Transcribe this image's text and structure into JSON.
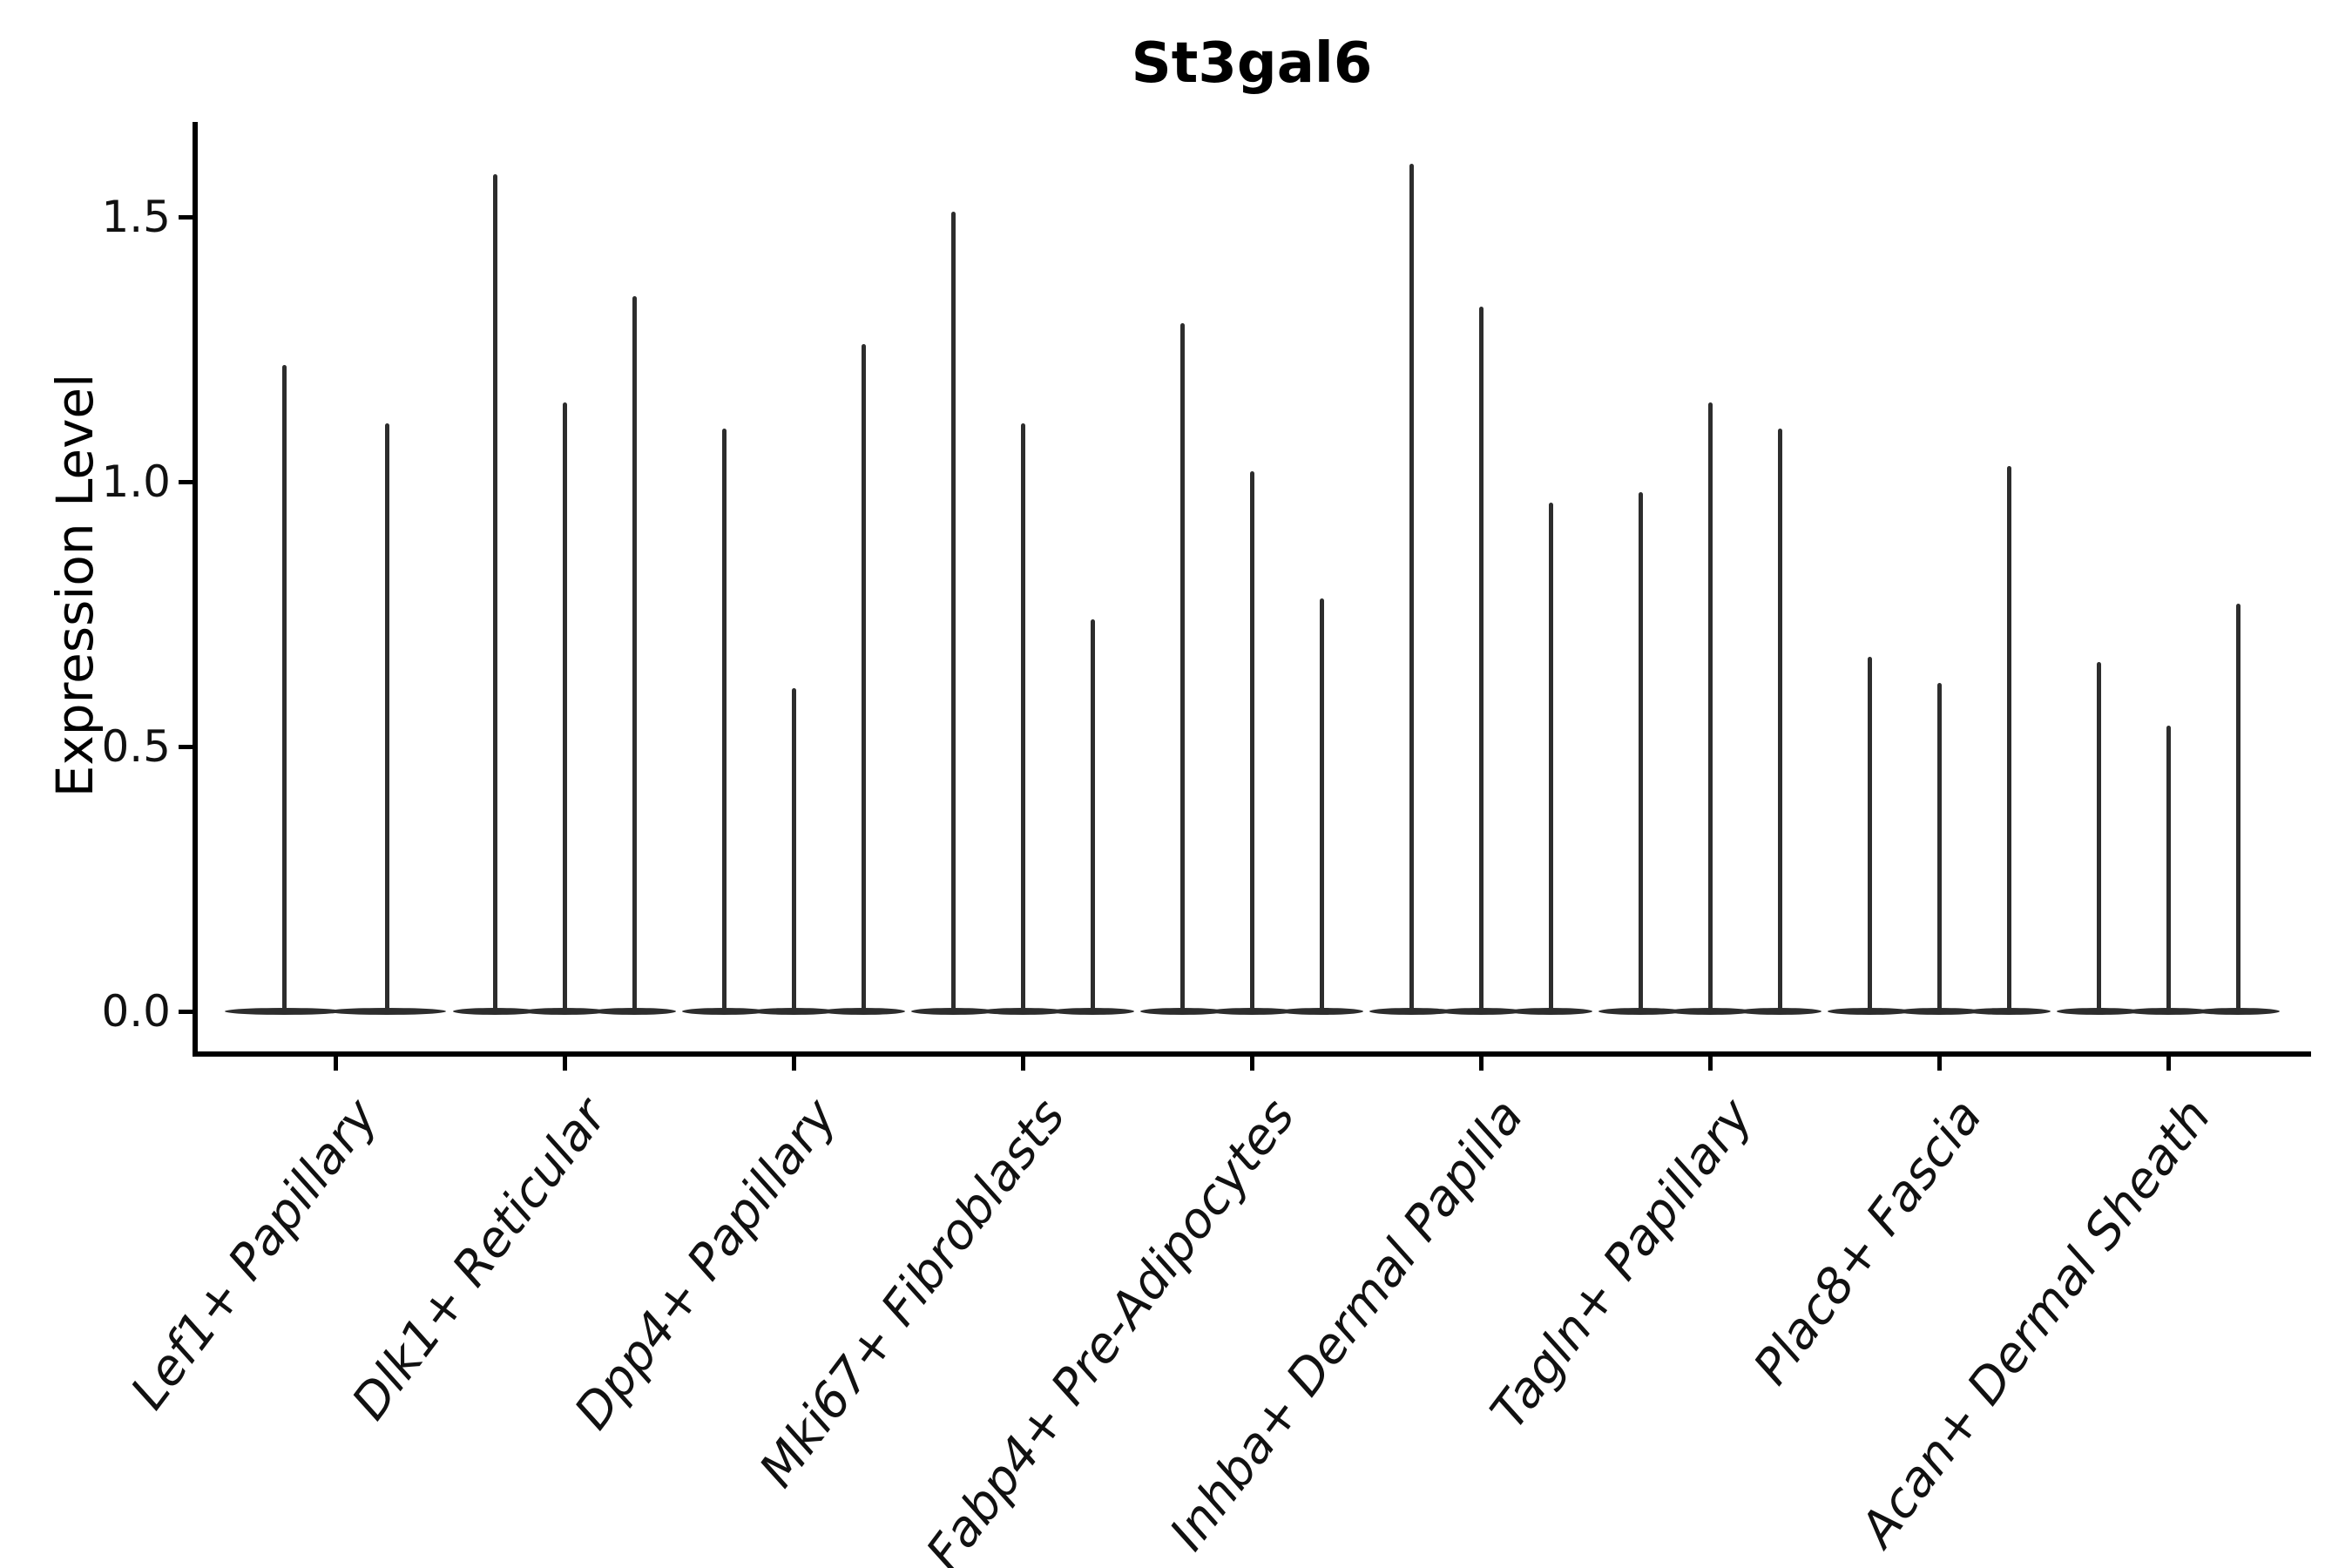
{
  "chart_data": {
    "type": "violin",
    "title": "St3gal6",
    "ylabel": "Expression Level",
    "xlabel": "",
    "yticks": [
      "0.0",
      "0.5",
      "1.0",
      "1.5"
    ],
    "ytick_values": [
      0.0,
      0.5,
      1.0,
      1.5
    ],
    "ylim": [
      -0.08,
      1.68
    ],
    "grid": false,
    "legend": "none",
    "ink_color": "#2d2d2d",
    "axis_color": "#000000",
    "background_color": "#ffffff",
    "note": "Each violin is a zero-inflated distribution: flat bulge at 0 plus a thin spike; value listed is the spike's maximum expression level.",
    "categories": [
      "Lef1+ Papillary",
      "Dlk1+ Reticular",
      "Dpp4+ Papillary",
      "Mki67+ Fibroblasts",
      "Fabp4+ Pre-Adipocytes",
      "Inhba+ Dermal Papilla",
      "Tagln+ Papillary",
      "Plac8+ Fascia",
      "Acan+ Dermal Sheath"
    ],
    "groups": [
      {
        "category": "Lef1+ Papillary",
        "violin_max_values": [
          1.22,
          1.11
        ]
      },
      {
        "category": "Dlk1+ Reticular",
        "violin_max_values": [
          1.58,
          1.15,
          1.35
        ]
      },
      {
        "category": "Dpp4+ Papillary",
        "violin_max_values": [
          1.1,
          0.61,
          1.26
        ]
      },
      {
        "category": "Mki67+ Fibroblasts",
        "violin_max_values": [
          1.51,
          1.11,
          0.74
        ]
      },
      {
        "category": "Fabp4+ Pre-Adipocytes",
        "violin_max_values": [
          1.3,
          1.02,
          0.78
        ]
      },
      {
        "category": "Inhba+ Dermal Papilla",
        "violin_max_values": [
          1.6,
          1.33,
          0.96
        ]
      },
      {
        "category": "Tagln+ Papillary",
        "violin_max_values": [
          0.98,
          1.15,
          1.1
        ]
      },
      {
        "category": "Plac8+ Fascia",
        "violin_max_values": [
          0.67,
          0.62,
          1.03
        ]
      },
      {
        "category": "Acan+ Dermal Sheath",
        "violin_max_values": [
          0.66,
          0.54,
          0.77
        ]
      }
    ]
  }
}
